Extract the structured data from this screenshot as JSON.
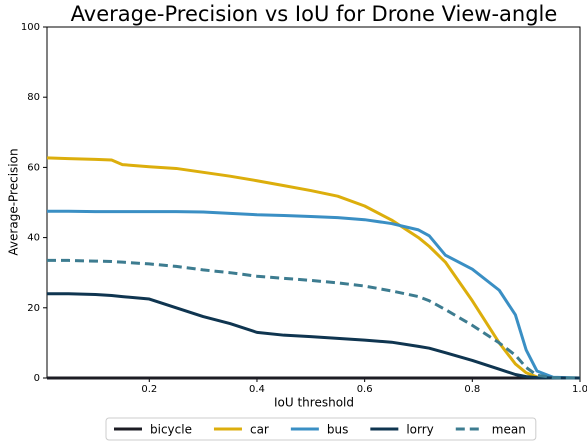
{
  "chart_data": {
    "type": "line",
    "title": "Average-Precision vs IoU for Drone View-angle",
    "x_label": "IoU threshold",
    "y_label": "Average-Precision",
    "x": [
      0.01,
      0.05,
      0.1,
      0.13,
      0.15,
      0.2,
      0.25,
      0.3,
      0.35,
      0.4,
      0.45,
      0.5,
      0.55,
      0.6,
      0.65,
      0.7,
      0.72,
      0.75,
      0.8,
      0.85,
      0.88,
      0.9,
      0.92,
      0.95,
      1.0
    ],
    "series": [
      {
        "name": "bicycle",
        "color": "#1c1c24",
        "dash": false,
        "values": [
          0,
          0,
          0,
          0,
          0,
          0,
          0,
          0,
          0,
          0,
          0,
          0,
          0,
          0,
          0,
          0,
          0,
          0,
          0,
          0,
          0,
          0,
          0,
          0,
          0
        ]
      },
      {
        "name": "car",
        "color": "#dcae0c",
        "dash": false,
        "values": [
          62.7,
          62.5,
          62.3,
          62.1,
          60.8,
          60.2,
          59.7,
          58.6,
          57.5,
          56.2,
          54.8,
          53.4,
          51.8,
          49,
          45,
          40,
          37.5,
          33,
          22,
          10,
          4,
          1.5,
          0.3,
          0,
          0
        ]
      },
      {
        "name": "bus",
        "color": "#3a8fc4",
        "dash": false,
        "values": [
          47.5,
          47.5,
          47.4,
          47.4,
          47.4,
          47.4,
          47.4,
          47.3,
          46.9,
          46.5,
          46.3,
          46,
          45.7,
          45.1,
          44,
          42.2,
          40.5,
          35,
          31,
          25,
          18,
          8,
          2,
          0.2,
          0
        ]
      },
      {
        "name": "lorry",
        "color": "#0f3550",
        "dash": false,
        "values": [
          24,
          24,
          23.8,
          23.5,
          23.2,
          22.5,
          20,
          17.5,
          15.5,
          13,
          12.2,
          11.8,
          11.3,
          10.8,
          10.2,
          9,
          8.5,
          7.2,
          5,
          2.5,
          1,
          0.4,
          0.1,
          0,
          0
        ]
      },
      {
        "name": "mean",
        "color": "#3d7c90",
        "dash": true,
        "values": [
          33.5,
          33.5,
          33.3,
          33.2,
          33,
          32.5,
          31.8,
          30.8,
          30,
          29,
          28.4,
          27.8,
          27.1,
          26.2,
          24.8,
          23.2,
          22,
          19.5,
          15,
          10,
          6.5,
          3,
          0.8,
          0.1,
          0
        ]
      }
    ],
    "xlim": [
      0.01,
      1.0
    ],
    "ylim": [
      0,
      100
    ],
    "xticks": [
      0.2,
      0.4,
      0.6,
      0.8,
      {
        "value": 1.0,
        "label": "1.0"
      }
    ],
    "yticks": [
      0,
      20,
      40,
      60,
      80,
      100
    ],
    "grid": false,
    "legend": "bottom"
  }
}
